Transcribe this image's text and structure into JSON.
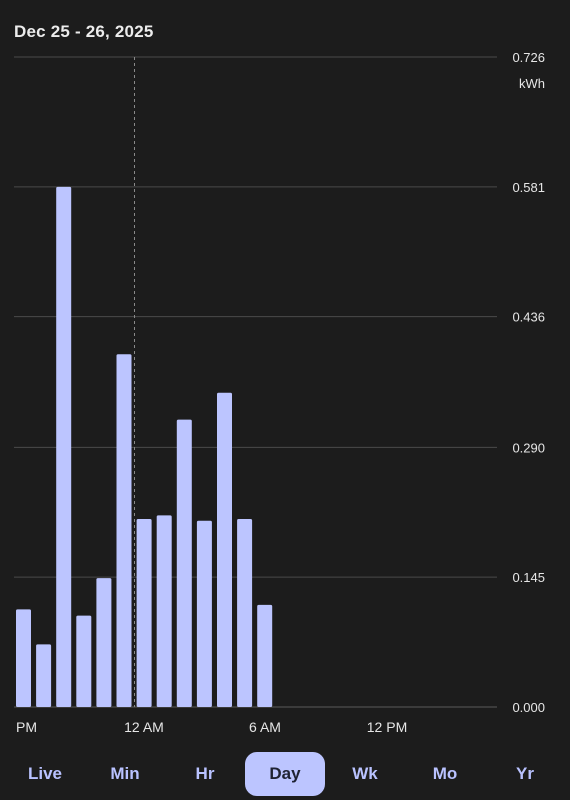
{
  "header": {
    "date_range": "Dec 25 - 26, 2025"
  },
  "tabs": [
    {
      "label": "Live",
      "active": false
    },
    {
      "label": "Min",
      "active": false
    },
    {
      "label": "Hr",
      "active": false
    },
    {
      "label": "Day",
      "active": true
    },
    {
      "label": "Wk",
      "active": false
    },
    {
      "label": "Mo",
      "active": false
    },
    {
      "label": "Yr",
      "active": false
    }
  ],
  "colors": {
    "bar": "#bcc5ff",
    "background": "#1c1c1c",
    "grid": "#4a4a4a",
    "text": "#e6e6e6",
    "active_tab": "#bcc5ff"
  },
  "chart_data": {
    "type": "bar",
    "unit": "kWh",
    "ylim": [
      0,
      0.726
    ],
    "y_ticks": [
      "0.000",
      "0.145",
      "0.290",
      "0.436",
      "0.581",
      "0.726"
    ],
    "x_tick_labels": [
      "PM",
      "12 AM",
      "6 AM",
      "12 PM"
    ],
    "grid": true,
    "y_axis_position": "right",
    "values": [
      0.109,
      0.07,
      0.581,
      0.102,
      0.144,
      0.394,
      0.21,
      0.214,
      0.321,
      0.208,
      0.351,
      0.21,
      0.114
    ]
  }
}
